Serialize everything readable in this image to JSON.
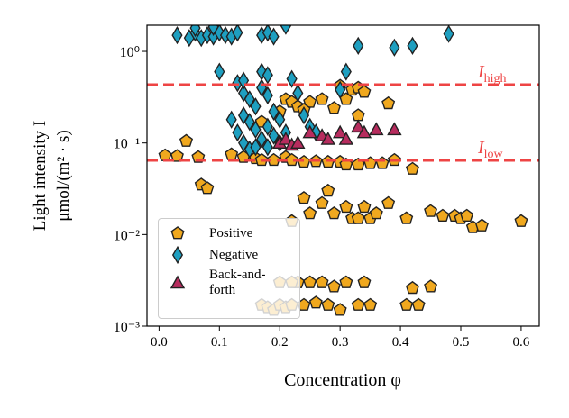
{
  "chart_data": {
    "type": "scatter",
    "xlabel": "Concentration φ",
    "ylabel": [
      "Light intensity I",
      "μmol/(m² · s)"
    ],
    "xlim": [
      -0.02,
      0.63
    ],
    "ylim": [
      0.001,
      1.93
    ],
    "log_y": true,
    "xticks": [
      {
        "value": 0.0,
        "label": "0.0"
      },
      {
        "value": 0.1,
        "label": "0.1"
      },
      {
        "value": 0.2,
        "label": "0.2"
      },
      {
        "value": 0.3,
        "label": "0.3"
      },
      {
        "value": 0.4,
        "label": "0.4"
      },
      {
        "value": 0.5,
        "label": "0.5"
      },
      {
        "value": 0.6,
        "label": "0.6"
      }
    ],
    "yticks": [
      {
        "value": 0.001,
        "label": "10⁻³"
      },
      {
        "value": 0.01,
        "label": "10⁻²"
      },
      {
        "value": 0.1,
        "label": "10⁻¹"
      },
      {
        "value": 1,
        "label": "10⁰"
      }
    ],
    "legend": "lower left",
    "hlines": [
      {
        "value": 0.433,
        "label": "I",
        "sub": "high",
        "color": "#ee4444"
      },
      {
        "value": 0.0646,
        "label": "I",
        "sub": "low",
        "color": "#ee4444"
      }
    ],
    "series": [
      {
        "name": "Positive",
        "marker": "pentagon",
        "color": "#f0a81e",
        "x": [
          0.01,
          0.03,
          0.045,
          0.065,
          0.07,
          0.08,
          0.12,
          0.14,
          0.16,
          0.17,
          0.19,
          0.21,
          0.22,
          0.24,
          0.26,
          0.28,
          0.3,
          0.31,
          0.33,
          0.35,
          0.37,
          0.39,
          0.42,
          0.17,
          0.2,
          0.21,
          0.22,
          0.23,
          0.25,
          0.27,
          0.3,
          0.32,
          0.33,
          0.34,
          0.31,
          0.29,
          0.33,
          0.38,
          0.24,
          0.22,
          0.24,
          0.25,
          0.27,
          0.28,
          0.29,
          0.31,
          0.32,
          0.33,
          0.34,
          0.35,
          0.36,
          0.38,
          0.41,
          0.45,
          0.47,
          0.49,
          0.5,
          0.51,
          0.52,
          0.535,
          0.6,
          0.17,
          0.18,
          0.19,
          0.2,
          0.21,
          0.22,
          0.23,
          0.24,
          0.25,
          0.26,
          0.27,
          0.28,
          0.29,
          0.3,
          0.31,
          0.33,
          0.34,
          0.35,
          0.41,
          0.42,
          0.45,
          0.43,
          0.22,
          0.2
        ],
        "y": [
          0.073,
          0.072,
          0.105,
          0.07,
          0.035,
          0.032,
          0.075,
          0.07,
          0.068,
          0.065,
          0.065,
          0.07,
          0.065,
          0.062,
          0.063,
          0.062,
          0.062,
          0.058,
          0.058,
          0.06,
          0.06,
          0.065,
          0.052,
          0.17,
          0.22,
          0.3,
          0.28,
          0.25,
          0.28,
          0.3,
          0.42,
          0.38,
          0.4,
          0.36,
          0.3,
          0.24,
          0.2,
          0.27,
          0.23,
          0.014,
          0.025,
          0.017,
          0.022,
          0.03,
          0.017,
          0.02,
          0.015,
          0.015,
          0.02,
          0.015,
          0.017,
          0.022,
          0.015,
          0.018,
          0.016,
          0.016,
          0.015,
          0.016,
          0.012,
          0.0125,
          0.014,
          0.0017,
          0.0016,
          0.0015,
          0.0017,
          0.0016,
          0.0017,
          0.003,
          0.0017,
          0.003,
          0.0018,
          0.003,
          0.0017,
          0.0027,
          0.0015,
          0.003,
          0.0017,
          0.003,
          0.0017,
          0.0017,
          0.0026,
          0.0027,
          0.0017,
          0.003,
          0.003
        ]
      },
      {
        "name": "Negative",
        "marker": "diamond",
        "color": "#1e9fc0",
        "x": [
          0.03,
          0.05,
          0.06,
          0.07,
          0.08,
          0.09,
          0.1,
          0.11,
          0.12,
          0.13,
          0.17,
          0.18,
          0.19,
          0.21,
          0.06,
          0.09,
          0.33,
          0.39,
          0.42,
          0.48,
          0.31,
          0.3,
          0.1,
          0.13,
          0.14,
          0.15,
          0.16,
          0.17,
          0.18,
          0.19,
          0.2,
          0.22,
          0.23,
          0.24,
          0.25,
          0.14,
          0.15,
          0.16,
          0.17,
          0.18,
          0.19,
          0.13,
          0.12,
          0.14,
          0.15,
          0.16,
          0.18,
          0.2,
          0.26,
          0.21,
          0.14,
          0.17,
          0.18
        ],
        "y": [
          1.5,
          1.4,
          1.6,
          1.4,
          1.5,
          1.45,
          1.6,
          1.5,
          1.45,
          1.6,
          1.5,
          1.6,
          1.45,
          1.9,
          1.8,
          1.85,
          1.15,
          1.1,
          1.15,
          1.55,
          0.6,
          0.38,
          0.6,
          0.45,
          0.35,
          0.3,
          0.25,
          0.4,
          0.33,
          0.22,
          0.18,
          0.5,
          0.35,
          0.2,
          0.15,
          0.2,
          0.17,
          0.14,
          0.11,
          0.15,
          0.12,
          0.13,
          0.18,
          0.1,
          0.085,
          0.09,
          0.09,
          0.1,
          0.13,
          0.13,
          0.48,
          0.6,
          0.55
        ]
      },
      {
        "name": "Back-and-forth",
        "marker": "triangle",
        "color": "#b72c5e",
        "x": [
          0.2,
          0.21,
          0.22,
          0.25,
          0.27,
          0.3,
          0.31,
          0.33,
          0.34,
          0.36,
          0.39,
          0.23,
          0.28
        ],
        "y": [
          0.1,
          0.11,
          0.095,
          0.13,
          0.12,
          0.13,
          0.11,
          0.15,
          0.13,
          0.14,
          0.14,
          0.1,
          0.11
        ]
      }
    ]
  }
}
